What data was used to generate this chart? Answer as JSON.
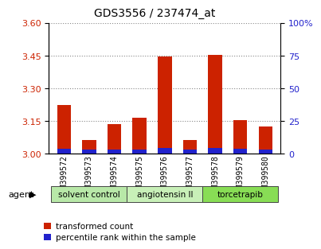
{
  "title": "GDS3556 / 237474_at",
  "samples": [
    "GSM399572",
    "GSM399573",
    "GSM399574",
    "GSM399575",
    "GSM399576",
    "GSM399577",
    "GSM399578",
    "GSM399579",
    "GSM399580"
  ],
  "red_values": [
    3.225,
    3.065,
    3.135,
    3.165,
    3.445,
    3.065,
    3.455,
    3.155,
    3.125
  ],
  "blue_values": [
    0.02,
    0.018,
    0.018,
    0.018,
    0.025,
    0.016,
    0.025,
    0.02,
    0.018
  ],
  "base": 3.0,
  "ylim_left": [
    3.0,
    3.6
  ],
  "ylim_right": [
    0,
    100
  ],
  "yticks_left": [
    3.0,
    3.15,
    3.3,
    3.45,
    3.6
  ],
  "yticks_right": [
    0,
    25,
    50,
    75,
    100
  ],
  "groups": [
    {
      "label": "solvent control",
      "start": 0,
      "end": 2,
      "color": "#b8e8a8"
    },
    {
      "label": "angiotensin II",
      "start": 3,
      "end": 5,
      "color": "#c8f0b8"
    },
    {
      "label": "torcetrapib",
      "start": 6,
      "end": 8,
      "color": "#88dd55"
    }
  ],
  "agent_label": "agent",
  "bar_color_red": "#cc2200",
  "bar_color_blue": "#2222cc",
  "bar_width": 0.55,
  "grid_color": "#888888",
  "bg_color": "#ffffff",
  "plot_bg_color": "#ffffff",
  "tick_label_color_left": "#cc2200",
  "tick_label_color_right": "#2222cc",
  "legend_items": [
    "transformed count",
    "percentile rank within the sample"
  ],
  "title_fontsize": 10,
  "tick_fontsize": 8,
  "bar_tick_fontsize": 7
}
